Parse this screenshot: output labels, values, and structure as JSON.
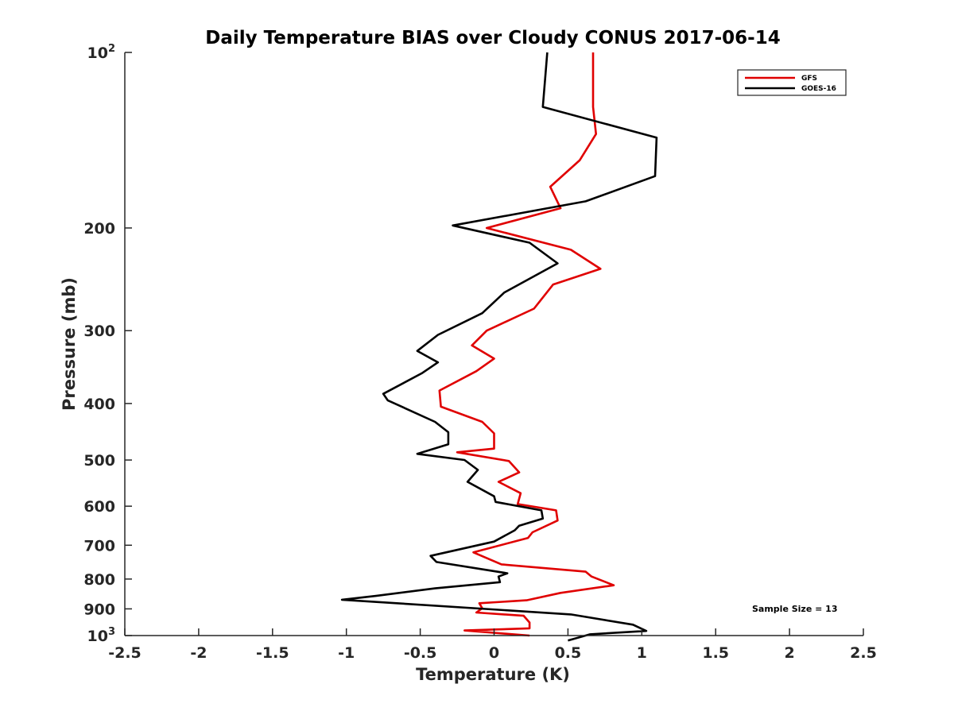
{
  "chart_data": {
    "type": "line",
    "title": "Daily Temperature BIAS over Cloudy CONUS 2017-06-14",
    "xlabel": "Temperature (K)",
    "ylabel": "Pressure (mb)",
    "xlim": [
      -2.5,
      2.5
    ],
    "ylim": [
      100,
      1000
    ],
    "y_scale": "log",
    "y_reversed": true,
    "grid": false,
    "legend_position": "top-right",
    "annotation": "Sample Size = 13",
    "x_ticks": [
      -2.5,
      -2,
      -1.5,
      -1,
      -0.5,
      0,
      0.5,
      1,
      1.5,
      2,
      2.5
    ],
    "x_tick_labels": [
      "-2.5",
      "-2",
      "-1.5",
      "-1",
      "-0.5",
      "0",
      "0.5",
      "1",
      "1.5",
      "2",
      "2.5"
    ],
    "y_ticks": [
      100,
      200,
      300,
      400,
      500,
      600,
      700,
      800,
      900,
      1000
    ],
    "y_tick_labels": [
      "",
      "200",
      "300",
      "400",
      "500",
      "600",
      "700",
      "800",
      "900",
      ""
    ],
    "y_tick_power_labels": [
      {
        "value": 100,
        "base": "10",
        "exp": "2"
      },
      {
        "value": 1000,
        "base": "10",
        "exp": "3"
      }
    ],
    "series": [
      {
        "name": "GFS",
        "color": "#e00000",
        "x": [
          0.67,
          0.67,
          0.69,
          0.58,
          0.38,
          0.45,
          -0.05,
          0.52,
          0.72,
          0.4,
          0.27,
          -0.05,
          -0.15,
          0.0,
          -0.12,
          -0.37,
          -0.36,
          -0.08,
          0.0,
          0.0,
          -0.25,
          0.1,
          0.17,
          0.03,
          0.18,
          0.16,
          0.42,
          0.43,
          0.26,
          0.23,
          -0.14,
          0.05,
          0.62,
          0.66,
          0.81,
          0.45,
          0.22,
          -0.1,
          -0.08,
          -0.12,
          0.2,
          0.24,
          0.24,
          -0.2,
          0.24
        ],
        "y": [
          100,
          124,
          138,
          153,
          170,
          185,
          200,
          218,
          235,
          250,
          275,
          300,
          318,
          335,
          352,
          380,
          405,
          430,
          450,
          478,
          485,
          502,
          525,
          545,
          570,
          595,
          610,
          635,
          665,
          680,
          720,
          755,
          777,
          792,
          820,
          845,
          870,
          880,
          898,
          913,
          925,
          950,
          972,
          980,
          1000
        ]
      },
      {
        "name": "GOES-16",
        "color": "#000000",
        "x": [
          0.36,
          0.33,
          1.1,
          1.09,
          0.62,
          -0.28,
          0.24,
          0.43,
          0.07,
          -0.08,
          -0.38,
          -0.52,
          -0.38,
          -0.49,
          -0.75,
          -0.72,
          -0.4,
          -0.31,
          -0.31,
          -0.52,
          -0.2,
          -0.11,
          -0.18,
          0.0,
          0.01,
          0.32,
          0.33,
          0.17,
          0.14,
          0.0,
          -0.43,
          -0.39,
          0.09,
          0.03,
          0.04,
          -0.4,
          -0.8,
          -1.03,
          0.52,
          0.94,
          1.03,
          0.65,
          0.5
        ],
        "y": [
          100,
          124,
          140,
          163,
          180,
          198,
          212,
          230,
          258,
          280,
          305,
          325,
          340,
          355,
          385,
          395,
          430,
          448,
          470,
          488,
          500,
          520,
          545,
          577,
          590,
          610,
          630,
          648,
          660,
          690,
          730,
          748,
          782,
          792,
          810,
          830,
          855,
          868,
          920,
          958,
          982,
          995,
          1020
        ]
      }
    ]
  }
}
